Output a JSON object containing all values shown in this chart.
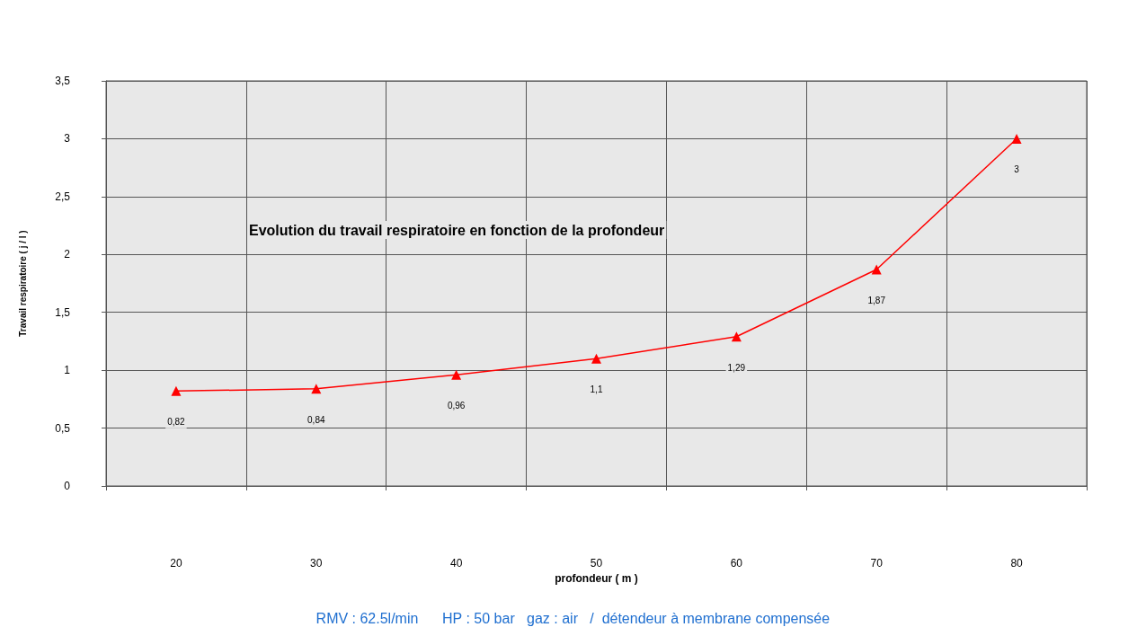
{
  "chart_data": {
    "type": "line",
    "title": "Evolution du travail respiratoire en fonction de la profondeur",
    "xlabel": "profondeur ( m )",
    "ylabel": "Travail respiratoire ( j / l )",
    "annotations": [
      "RMV : 62.5l/min      HP : 50 bar   gaz : air   /  détendeur à membrane compensée"
    ],
    "categories": [
      "20",
      "30",
      "40",
      "50",
      "60",
      "70",
      "80"
    ],
    "series": [
      {
        "color": "#ff0000",
        "values": [
          0.82,
          0.84,
          0.96,
          1.1,
          1.29,
          1.87,
          3
        ],
        "value_labels": [
          "0,82",
          "0,84",
          "0,96",
          "1,1",
          "1,29",
          "1,87",
          "3"
        ]
      }
    ],
    "ylim": [
      0,
      3.5
    ],
    "yticks": [
      0,
      {
        "value": 0.5,
        "label": "0,5"
      },
      1,
      {
        "value": 1.5,
        "label": "1,5"
      },
      2,
      {
        "value": 2.5,
        "label": "2,5"
      },
      3,
      {
        "value": 3.5,
        "label": "3,5"
      }
    ],
    "grid": true,
    "marker": "triangle",
    "line_style": "solid"
  }
}
